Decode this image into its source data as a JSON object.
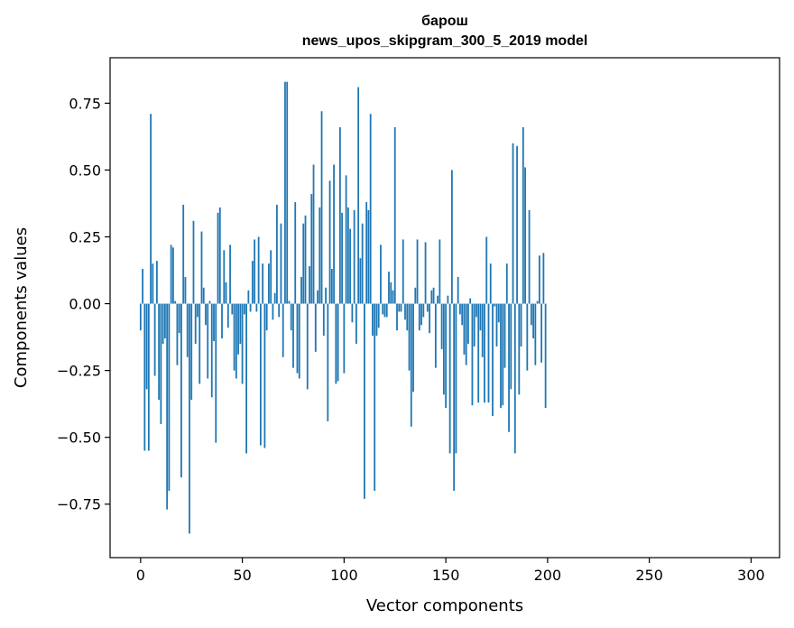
{
  "chart_data": {
    "type": "bar",
    "title_lines": [
      "барош",
      "news_upos_skipgram_300_5_2019 model"
    ],
    "xlabel": "Vector components",
    "ylabel": "Components values",
    "xlim": [
      -15,
      314
    ],
    "ylim": [
      -0.95,
      0.92
    ],
    "xticks": [
      0,
      50,
      100,
      150,
      200,
      250,
      300
    ],
    "xtick_labels": [
      "0",
      "50",
      "100",
      "150",
      "200",
      "250",
      "300"
    ],
    "yticks": [
      -0.75,
      -0.5,
      -0.25,
      0.0,
      0.25,
      0.5,
      0.75
    ],
    "ytick_labels": [
      "−0.75",
      "−0.50",
      "−0.25",
      "0.00",
      "0.25",
      "0.50",
      "0.75"
    ],
    "bar_color": "#1f77b4",
    "grid": false,
    "values": [
      -0.1,
      0.13,
      -0.55,
      -0.32,
      -0.55,
      0.71,
      0.15,
      -0.27,
      0.16,
      -0.36,
      -0.45,
      -0.15,
      -0.13,
      -0.77,
      -0.7,
      0.22,
      0.21,
      0.01,
      -0.23,
      -0.11,
      -0.65,
      0.37,
      0.1,
      -0.2,
      -0.86,
      -0.36,
      0.31,
      -0.15,
      -0.05,
      -0.3,
      0.27,
      0.06,
      -0.08,
      -0.28,
      0.01,
      -0.35,
      -0.14,
      -0.52,
      0.34,
      0.36,
      -0.13,
      0.2,
      0.08,
      -0.09,
      0.22,
      -0.04,
      -0.25,
      -0.28,
      -0.19,
      -0.15,
      -0.3,
      -0.04,
      -0.56,
      0.05,
      -0.03,
      0.16,
      0.24,
      -0.03,
      0.25,
      -0.53,
      0.15,
      -0.54,
      -0.1,
      0.15,
      0.2,
      -0.06,
      0.04,
      0.37,
      -0.05,
      0.3,
      -0.2,
      0.83,
      0.83,
      0.01,
      -0.1,
      -0.24,
      0.38,
      -0.26,
      -0.28,
      0.1,
      0.3,
      0.33,
      -0.32,
      0.14,
      0.41,
      0.52,
      -0.18,
      0.05,
      0.36,
      0.72,
      -0.12,
      0.06,
      -0.44,
      0.46,
      0.13,
      0.52,
      -0.3,
      -0.29,
      0.66,
      0.34,
      -0.26,
      0.48,
      0.36,
      0.28,
      -0.07,
      0.35,
      -0.15,
      0.81,
      0.17,
      0.3,
      -0.73,
      0.38,
      0.35,
      0.71,
      -0.12,
      -0.7,
      -0.12,
      -0.09,
      0.22,
      -0.04,
      -0.05,
      -0.05,
      0.12,
      0.08,
      0.05,
      0.66,
      -0.1,
      -0.03,
      -0.03,
      0.24,
      -0.06,
      -0.1,
      -0.25,
      -0.46,
      -0.33,
      0.06,
      0.24,
      -0.1,
      -0.08,
      -0.05,
      0.23,
      -0.03,
      -0.11,
      0.05,
      0.06,
      -0.24,
      0.03,
      0.24,
      -0.17,
      -0.34,
      -0.39,
      0.03,
      -0.56,
      0.5,
      -0.7,
      -0.56,
      0.1,
      -0.04,
      -0.08,
      -0.19,
      -0.23,
      -0.15,
      0.02,
      -0.38,
      -0.16,
      -0.05,
      -0.37,
      -0.1,
      -0.2,
      -0.37,
      0.25,
      -0.37,
      0.15,
      -0.42,
      -0.01,
      -0.16,
      -0.07,
      -0.39,
      -0.38,
      -0.24,
      0.15,
      -0.48,
      -0.32,
      0.6,
      -0.56,
      0.59,
      -0.34,
      -0.16,
      0.66,
      0.51,
      -0.25,
      0.35,
      -0.08,
      -0.13,
      -0.23,
      0.01,
      0.18,
      -0.22,
      0.19,
      -0.39
    ]
  }
}
